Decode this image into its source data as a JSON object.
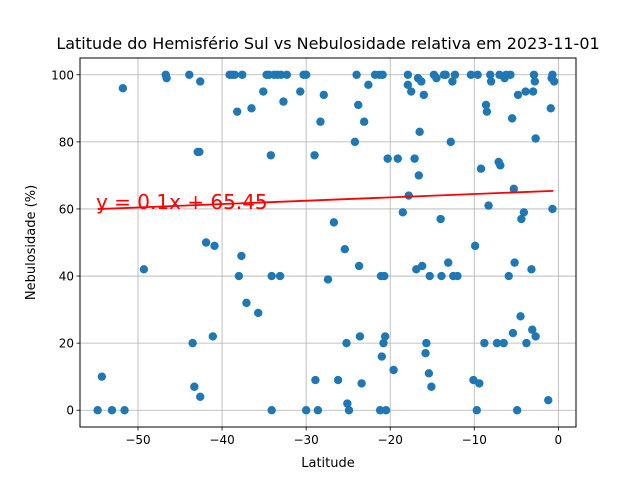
{
  "chart_data": {
    "type": "scatter",
    "title": "Latitude do Hemisfério Sul vs Nebulosidade relativa em 2023-11-01",
    "xlabel": "Latitude",
    "ylabel": "Nebulosidade (%)",
    "xlim": [
      -56.9,
      2.1
    ],
    "ylim": [
      -5,
      105
    ],
    "xticks": [
      -50,
      -40,
      -30,
      -20,
      -10,
      0
    ],
    "yticks": [
      0,
      20,
      40,
      60,
      80,
      100
    ],
    "grid": true,
    "colors": {
      "points": "#1f77b4",
      "regression": "#ff0000",
      "annotation": "#ff0000"
    },
    "regression": {
      "slope": 0.1,
      "intercept": 65.45,
      "x_range": [
        -54.8,
        -0.6
      ]
    },
    "annotation": {
      "text": "y = 0.1x + 65.45",
      "x": -55.0,
      "y": 60.0
    },
    "points": [
      [
        -54.8,
        0
      ],
      [
        -54.3,
        10
      ],
      [
        -53.1,
        0
      ],
      [
        -51.6,
        0
      ],
      [
        -51.8,
        96
      ],
      [
        -49.3,
        42
      ],
      [
        -46.7,
        100
      ],
      [
        -46.6,
        99
      ],
      [
        -43.9,
        100
      ],
      [
        -43.5,
        20
      ],
      [
        -43.3,
        7
      ],
      [
        -42.9,
        77
      ],
      [
        -42.7,
        77
      ],
      [
        -42.6,
        4
      ],
      [
        -42.6,
        98
      ],
      [
        -41.9,
        50
      ],
      [
        -41.1,
        22
      ],
      [
        -40.9,
        49
      ],
      [
        -39.1,
        100
      ],
      [
        -38.8,
        100
      ],
      [
        -38.5,
        100
      ],
      [
        -38.2,
        89
      ],
      [
        -38.0,
        40
      ],
      [
        -37.7,
        46
      ],
      [
        -37.6,
        100
      ],
      [
        -37.1,
        32
      ],
      [
        -36.5,
        90
      ],
      [
        -35.7,
        29
      ],
      [
        -35.1,
        95
      ],
      [
        -34.7,
        100
      ],
      [
        -34.4,
        100
      ],
      [
        -34.2,
        76
      ],
      [
        -34.1,
        40
      ],
      [
        -34.1,
        0
      ],
      [
        -33.8,
        100
      ],
      [
        -33.4,
        100
      ],
      [
        -33.1,
        40
      ],
      [
        -33.0,
        100
      ],
      [
        -32.7,
        92
      ],
      [
        -32.3,
        100
      ],
      [
        -30.7,
        95
      ],
      [
        -30.3,
        100
      ],
      [
        -30.0,
        100
      ],
      [
        -30.0,
        0
      ],
      [
        -29.0,
        76
      ],
      [
        -28.9,
        9
      ],
      [
        -28.6,
        0
      ],
      [
        -28.3,
        86
      ],
      [
        -27.9,
        94
      ],
      [
        -27.4,
        39
      ],
      [
        -26.7,
        56
      ],
      [
        -26.2,
        9
      ],
      [
        -25.4,
        48
      ],
      [
        -25.2,
        20
      ],
      [
        -25.1,
        2
      ],
      [
        -24.9,
        0
      ],
      [
        -24.2,
        80
      ],
      [
        -24.0,
        100
      ],
      [
        -23.8,
        91
      ],
      [
        -23.7,
        43
      ],
      [
        -23.6,
        22
      ],
      [
        -23.4,
        8
      ],
      [
        -23.1,
        86
      ],
      [
        -22.6,
        97
      ],
      [
        -21.8,
        100
      ],
      [
        -21.3,
        100
      ],
      [
        -21.2,
        0
      ],
      [
        -21.1,
        40
      ],
      [
        -21.0,
        16
      ],
      [
        -20.9,
        100
      ],
      [
        -20.8,
        20
      ],
      [
        -20.7,
        40
      ],
      [
        -20.6,
        22
      ],
      [
        -20.5,
        0
      ],
      [
        -20.3,
        75
      ],
      [
        -19.6,
        12
      ],
      [
        -19.1,
        75
      ],
      [
        -18.5,
        59
      ],
      [
        -17.9,
        100
      ],
      [
        -17.9,
        97
      ],
      [
        -17.8,
        64
      ],
      [
        -17.5,
        95
      ],
      [
        -17.1,
        75
      ],
      [
        -16.9,
        42
      ],
      [
        -16.7,
        99
      ],
      [
        -16.6,
        70
      ],
      [
        -16.5,
        83
      ],
      [
        -16.3,
        98
      ],
      [
        -16.2,
        43
      ],
      [
        -16.0,
        94
      ],
      [
        -15.8,
        17
      ],
      [
        -15.7,
        20
      ],
      [
        -15.4,
        11
      ],
      [
        -15.3,
        40
      ],
      [
        -15.1,
        7
      ],
      [
        -14.8,
        100
      ],
      [
        -14.5,
        99
      ],
      [
        -14.0,
        57
      ],
      [
        -13.9,
        40
      ],
      [
        -13.6,
        100
      ],
      [
        -13.4,
        100
      ],
      [
        -13.1,
        44
      ],
      [
        -12.8,
        80
      ],
      [
        -12.6,
        98
      ],
      [
        -12.5,
        40
      ],
      [
        -12.3,
        100
      ],
      [
        -12.0,
        40
      ],
      [
        -10.4,
        100
      ],
      [
        -10.1,
        9
      ],
      [
        -9.9,
        49
      ],
      [
        -9.7,
        0
      ],
      [
        -9.6,
        100
      ],
      [
        -9.4,
        8
      ],
      [
        -9.2,
        72
      ],
      [
        -8.8,
        20
      ],
      [
        -8.6,
        91
      ],
      [
        -8.5,
        89
      ],
      [
        -8.3,
        61
      ],
      [
        -8.1,
        100
      ],
      [
        -8.0,
        98
      ],
      [
        -7.3,
        20
      ],
      [
        -7.1,
        74
      ],
      [
        -7.0,
        100
      ],
      [
        -6.9,
        73
      ],
      [
        -6.5,
        20
      ],
      [
        -6.4,
        99
      ],
      [
        -6.2,
        100
      ],
      [
        -5.9,
        40
      ],
      [
        -5.7,
        100
      ],
      [
        -5.5,
        87
      ],
      [
        -5.4,
        23
      ],
      [
        -5.3,
        66
      ],
      [
        -5.2,
        44
      ],
      [
        -4.9,
        0
      ],
      [
        -4.8,
        94
      ],
      [
        -4.5,
        28
      ],
      [
        -4.4,
        57
      ],
      [
        -4.1,
        59
      ],
      [
        -3.9,
        95
      ],
      [
        -3.8,
        20
      ],
      [
        -3.2,
        42
      ],
      [
        -3.1,
        24
      ],
      [
        -3.0,
        95
      ],
      [
        -2.9,
        100
      ],
      [
        -2.8,
        98
      ],
      [
        -2.7,
        22
      ],
      [
        -2.7,
        81
      ],
      [
        -1.2,
        3
      ],
      [
        -0.9,
        90
      ],
      [
        -0.8,
        99
      ],
      [
        -0.7,
        100
      ],
      [
        -0.7,
        60
      ],
      [
        -0.5,
        98
      ]
    ]
  }
}
